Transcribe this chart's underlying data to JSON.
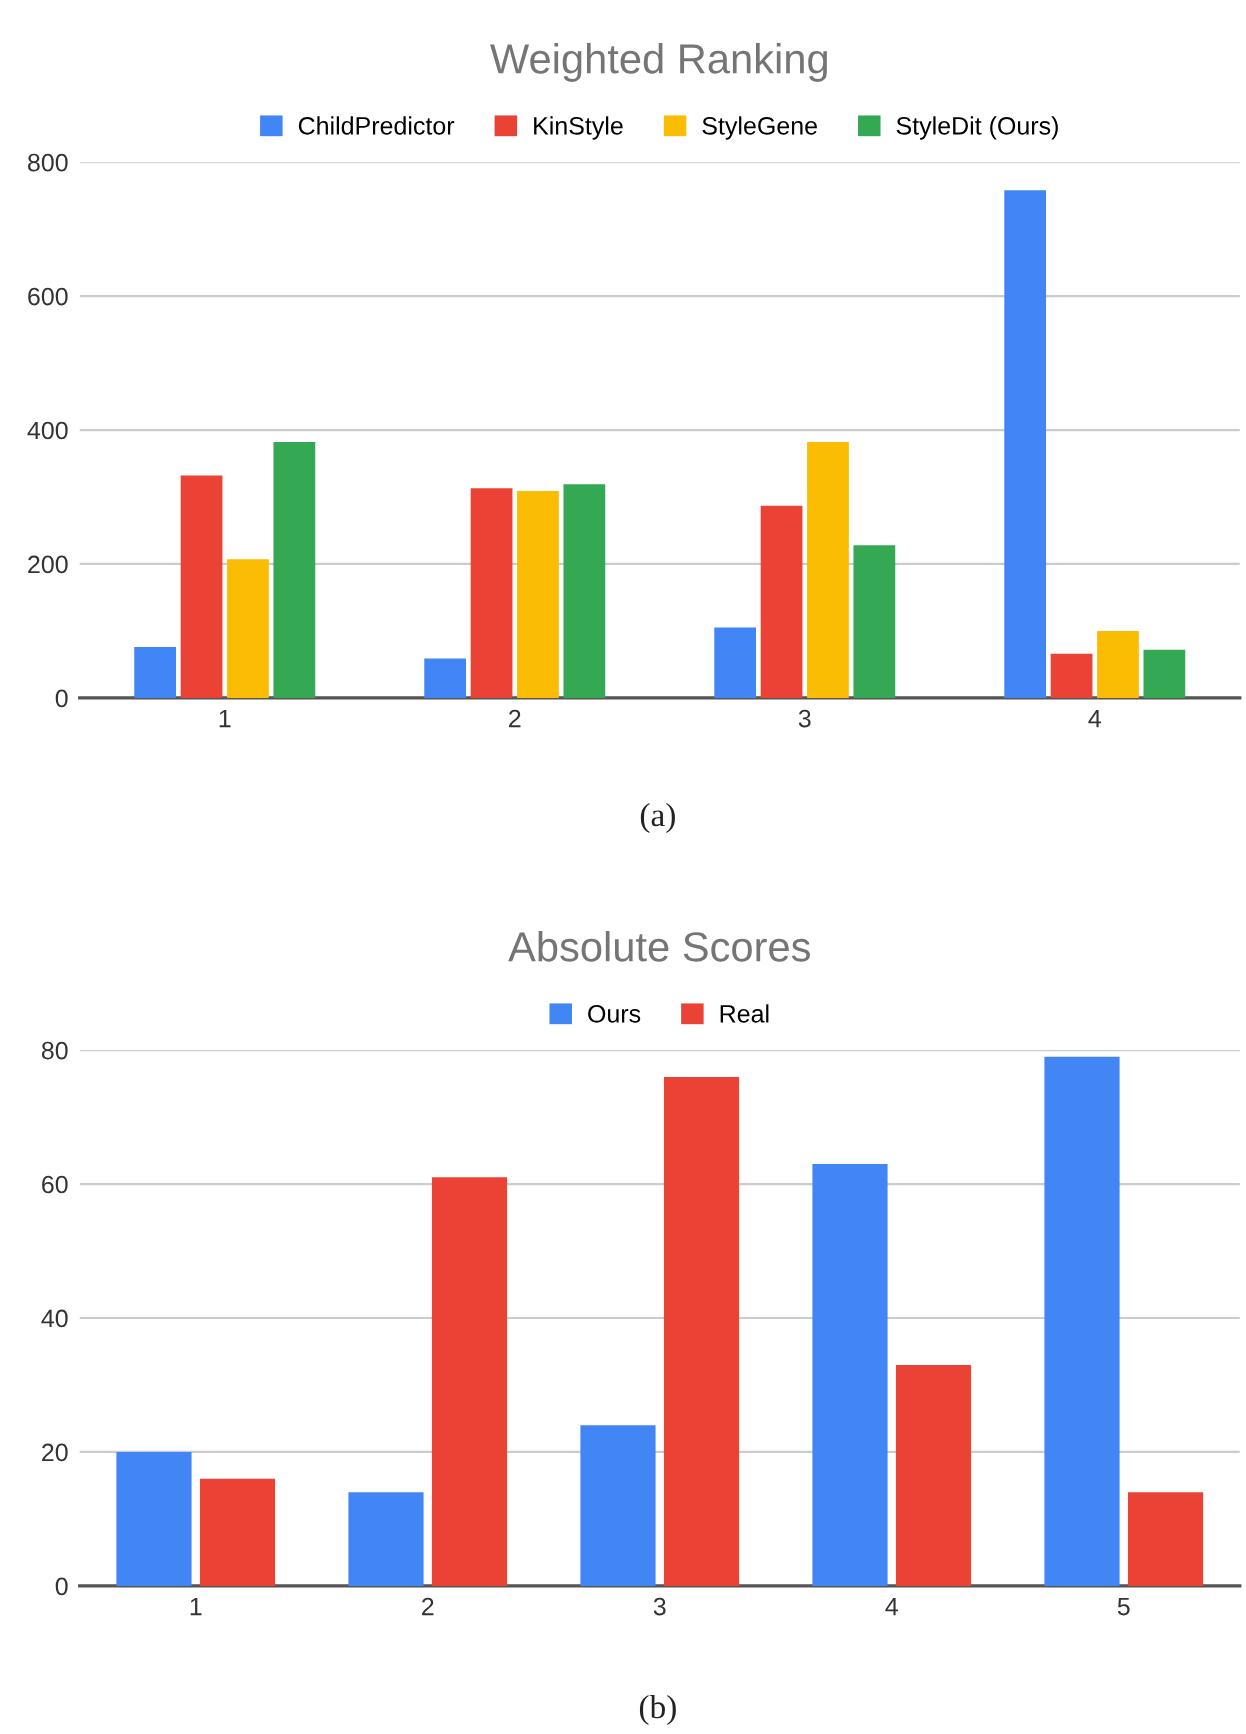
{
  "chart_data": [
    {
      "type": "bar",
      "title": "Weighted Ranking",
      "categories": [
        "1",
        "2",
        "3",
        "4"
      ],
      "series": [
        {
          "name": "ChildPredictor",
          "color": "#4285f4",
          "values": [
            76,
            59,
            105,
            758
          ]
        },
        {
          "name": "KinStyle",
          "color": "#ea4335",
          "values": [
            332,
            313,
            287,
            66
          ]
        },
        {
          "name": "StyleGene",
          "color": "#fbbc04",
          "values": [
            207,
            309,
            382,
            100
          ]
        },
        {
          "name": "StyleDit (Ours)",
          "color": "#34a853",
          "values": [
            382,
            319,
            228,
            72
          ]
        }
      ],
      "ylim": [
        0,
        800
      ],
      "yticks": [
        0,
        200,
        400,
        600,
        800
      ],
      "grid": "y",
      "legend": "top",
      "annotations": [
        "(a)"
      ]
    },
    {
      "type": "bar",
      "title": "Absolute Scores",
      "categories": [
        "1",
        "2",
        "3",
        "4",
        "5"
      ],
      "series": [
        {
          "name": "Ours",
          "color": "#4285f4",
          "values": [
            20,
            14,
            24,
            63,
            79
          ]
        },
        {
          "name": "Real",
          "color": "#ea4335",
          "values": [
            16,
            61,
            76,
            33,
            14
          ]
        }
      ],
      "ylim": [
        0,
        80
      ],
      "yticks": [
        0,
        20,
        40,
        60,
        80
      ],
      "grid": "y",
      "legend": "top",
      "annotations": [
        "(b)"
      ]
    }
  ]
}
